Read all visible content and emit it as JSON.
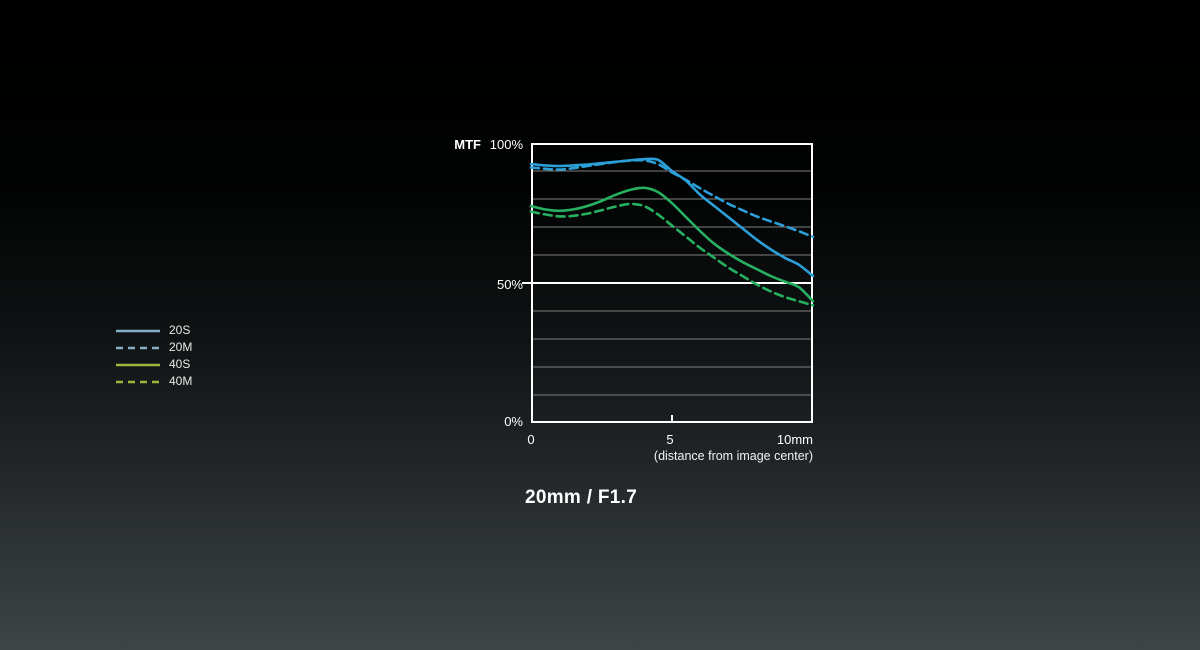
{
  "title_card": "20mm / F1.7",
  "chart_data": {
    "type": "line",
    "title": "20mm / F1.7",
    "ylabel": "MTF",
    "xlabel": "(distance from image center)",
    "x_tick_labels": [
      "0",
      "5",
      "10mm"
    ],
    "y_tick_labels": [
      "0%",
      "50%",
      "100%"
    ],
    "x_range": [
      0,
      10
    ],
    "y_range": [
      0,
      100
    ],
    "grid": "horizontal every 10%, 50% emphasized white, others gray",
    "grid_color": "#7f7f7f",
    "emphasis_line_color": "#ffffff",
    "border_color": "#ffffff",
    "legend_position": "left of chart",
    "x": [
      0,
      0.5,
      1,
      1.5,
      2,
      2.5,
      3,
      3.5,
      4,
      4.5,
      5,
      5.5,
      6,
      6.5,
      7,
      7.5,
      8,
      8.5,
      9,
      9.5,
      10
    ],
    "series": [
      {
        "name": "20S",
        "style": "solid",
        "color": "#2d9fd8",
        "legend_color": "#86afca",
        "values": [
          92.5,
          92,
          91.8,
          92,
          92.3,
          92.8,
          93.3,
          93.8,
          94.2,
          94,
          90,
          86.5,
          81.5,
          77.5,
          73.5,
          69.5,
          65.5,
          62,
          59,
          56.5,
          52.5
        ]
      },
      {
        "name": "20M",
        "style": "dashed",
        "color": "#2d9fd8",
        "legend_color": "#86afca",
        "values": [
          91.3,
          90.8,
          90.5,
          91,
          91.8,
          92.5,
          93.2,
          93.7,
          93.8,
          92.5,
          89.5,
          86.8,
          83.8,
          81,
          78.3,
          76,
          73.8,
          72,
          70.3,
          68.5,
          66.5
        ]
      },
      {
        "name": "40S",
        "style": "solid",
        "color": "#26b161",
        "legend_color": "#9db93c",
        "values": [
          77.5,
          76.3,
          75.8,
          76.3,
          77.5,
          79.3,
          81.5,
          83.2,
          84,
          82.5,
          78.5,
          73.5,
          68.5,
          64,
          60.5,
          57.5,
          55,
          52.5,
          50.5,
          48.5,
          43.5
        ]
      },
      {
        "name": "40M",
        "style": "dashed",
        "color": "#26b161",
        "legend_color": "#9db93c",
        "values": [
          75.5,
          74.5,
          73.8,
          74,
          74.8,
          76,
          77.3,
          78.2,
          77.5,
          74.5,
          70.5,
          66.5,
          62.5,
          59,
          55.5,
          52.5,
          49.5,
          47,
          45,
          43.5,
          42
        ]
      }
    ]
  }
}
